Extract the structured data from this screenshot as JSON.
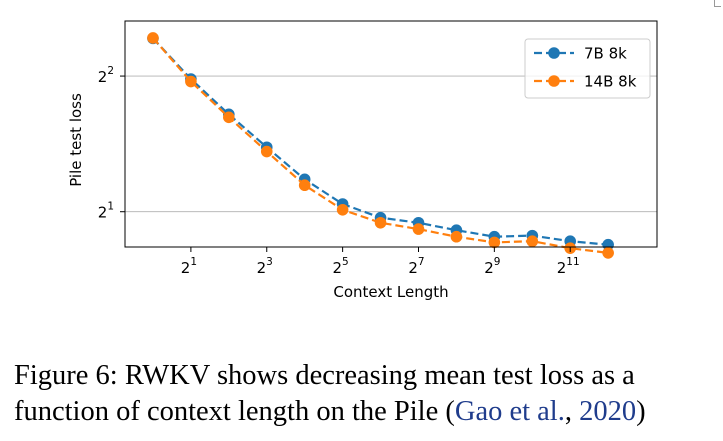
{
  "figure": {
    "caption_label": "Figure 6:",
    "caption_line1": "RWKV shows decreasing mean test loss as a",
    "caption_line2": "function of context length on the Pile (",
    "citation_text": "Gao et al.",
    "citation_comma": ", ",
    "citation_year": "2020",
    "caption_close": ")"
  },
  "chart_data": {
    "type": "line",
    "title": "",
    "xlabel": "Context Length",
    "ylabel": "Pile test loss",
    "x_scale": "log2",
    "y_scale": "log2",
    "xlim": [
      0.6,
      10000
    ],
    "ylim": [
      1.67,
      5.3
    ],
    "xticks": [
      2,
      8,
      32,
      128,
      512,
      2048
    ],
    "xtick_labels": [
      {
        "base": "2",
        "exp": "1"
      },
      {
        "base": "2",
        "exp": "3"
      },
      {
        "base": "2",
        "exp": "5"
      },
      {
        "base": "2",
        "exp": "7"
      },
      {
        "base": "2",
        "exp": "9"
      },
      {
        "base": "2",
        "exp": "11"
      }
    ],
    "yticks": [
      2,
      4
    ],
    "ytick_labels": [
      {
        "base": "2",
        "exp": "1"
      },
      {
        "base": "2",
        "exp": "2"
      }
    ],
    "grid": "y-major",
    "legend_position": "top-right",
    "x": [
      1,
      2,
      4,
      8,
      16,
      32,
      64,
      128,
      256,
      512,
      1024,
      2048,
      4096
    ],
    "series": [
      {
        "name": "7B 8k",
        "color": "#1f77b4",
        "values": [
          4.85,
          3.94,
          3.29,
          2.78,
          2.36,
          2.08,
          1.94,
          1.89,
          1.82,
          1.76,
          1.77,
          1.72,
          1.69
        ]
      },
      {
        "name": "14B 8k",
        "color": "#ff7f0e",
        "values": [
          4.86,
          3.89,
          3.24,
          2.72,
          2.29,
          2.02,
          1.89,
          1.83,
          1.76,
          1.71,
          1.72,
          1.66,
          1.62
        ]
      }
    ]
  }
}
